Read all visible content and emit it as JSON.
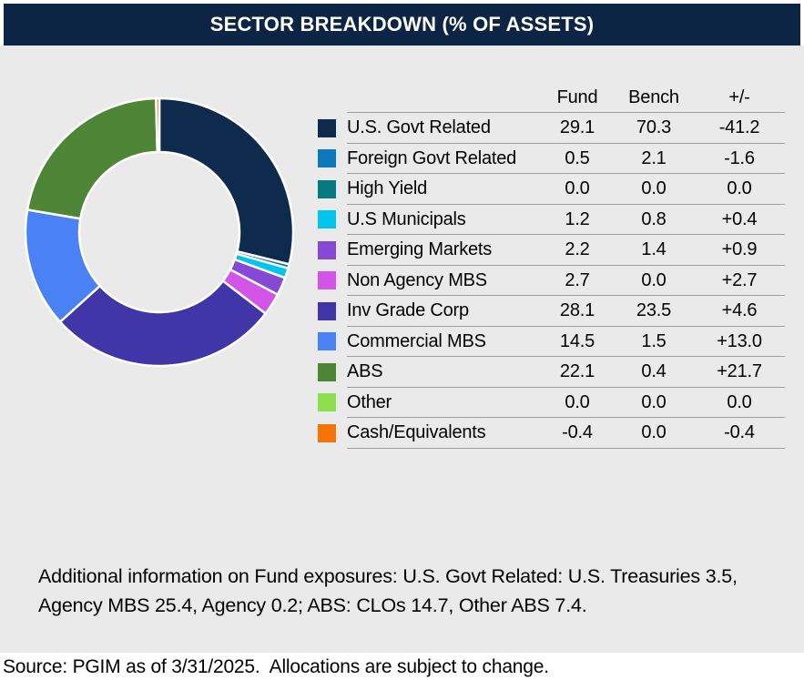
{
  "header": {
    "title": "SECTOR BREAKDOWN (% OF ASSETS)"
  },
  "table": {
    "headers": [
      "Fund",
      "Bench",
      "+/-"
    ]
  },
  "chart_data": {
    "type": "pie",
    "subtype": "donut",
    "title": "SECTOR BREAKDOWN (% OF ASSETS)",
    "start_angle_deg": -90,
    "direction": "clockwise",
    "donut_series": "Fund",
    "categories": [
      "U.S. Govt Related",
      "Foreign Govt Related",
      "High Yield",
      "U.S Municipals",
      "Emerging Markets",
      "Non Agency MBS",
      "Inv Grade Corp",
      "Commercial MBS",
      "ABS",
      "Other",
      "Cash/Equivalents"
    ],
    "colors": [
      "#0E2A4C",
      "#0C79BE",
      "#077983",
      "#00C5EF",
      "#8549D6",
      "#D355E8",
      "#4136A8",
      "#4A82F5",
      "#4E8536",
      "#8BDF4D",
      "#F87306"
    ],
    "series": [
      {
        "name": "Fund",
        "values": [
          29.1,
          0.5,
          0.0,
          1.2,
          2.2,
          2.7,
          28.1,
          14.5,
          22.1,
          0.0,
          -0.4
        ]
      },
      {
        "name": "Bench",
        "values": [
          70.3,
          2.1,
          0.0,
          0.8,
          1.4,
          0.0,
          23.5,
          1.5,
          0.4,
          0.0,
          0.0
        ]
      },
      {
        "name": "+/-",
        "values": [
          "-41.2",
          "-1.6",
          "0.0",
          "+0.4",
          "+0.9",
          "+2.7",
          "+4.6",
          "+13.0",
          "+21.7",
          "0.0",
          "-0.4"
        ]
      }
    ]
  },
  "footnotes": {
    "additional_line1": "Additional information on Fund exposures: U.S. Govt Related: U.S. Treasuries 3.5,",
    "additional_line2": "Agency MBS 25.4, Agency 0.2; ABS: CLOs 14.7, Other ABS 7.4.",
    "source": "Source: PGIM as of 3/31/2025.  Allocations are subject to change."
  },
  "colors": {
    "header_bg": "#0D2544",
    "panel_bg": "#EAEAEA",
    "row_line": "#A0A0A0",
    "text": "#000000"
  }
}
